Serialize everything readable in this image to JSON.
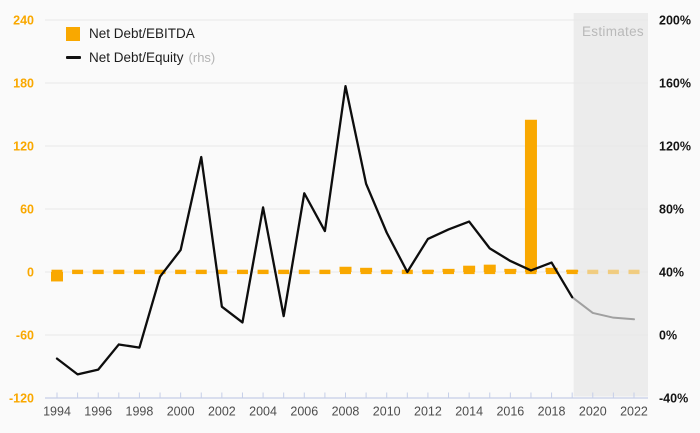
{
  "legend": {
    "ebitda_label": "Net Debt/EBITDA",
    "equity_label": "Net Debt/Equity",
    "equity_suffix": "(rhs)"
  },
  "estimates_label": "Estimates",
  "colors": {
    "accent": "#f9a800",
    "accent_faded_opacity": 0.45,
    "line": "#0d0d0d",
    "line_estimate": "#a0a0a0",
    "grid": "#e8e8e8",
    "axis": "#c5cee8",
    "x_label": "#4d4d4d",
    "left_label": "#f9a800",
    "right_label": "#141414",
    "estimates_bg": "#ececec",
    "background": "#fafafa"
  },
  "chart_data": {
    "type": "bar+line combo, dual axis",
    "x": [
      1994,
      1995,
      1996,
      1997,
      1998,
      1999,
      2000,
      2001,
      2002,
      2003,
      2004,
      2005,
      2006,
      2007,
      2008,
      2009,
      2010,
      2011,
      2012,
      2013,
      2014,
      2015,
      2016,
      2017,
      2018,
      2019,
      2020,
      2021,
      2022
    ],
    "x_tick_labels": [
      "1994",
      "1996",
      "1998",
      "2000",
      "2002",
      "2004",
      "2006",
      "2008",
      "2010",
      "2012",
      "2014",
      "2016",
      "2018",
      "2020",
      "2022"
    ],
    "series": [
      {
        "name": "Net Debt/EBITDA",
        "type": "bar",
        "axis": "left",
        "values": [
          -9,
          0,
          0,
          0,
          0,
          0,
          0,
          0,
          0,
          0,
          0,
          0,
          0,
          0,
          5,
          4,
          2,
          0,
          2,
          3,
          6,
          7,
          3,
          145,
          4,
          2,
          0,
          0,
          0
        ]
      },
      {
        "name": "Net Debt/Equity",
        "type": "line",
        "axis": "right",
        "unit": "%",
        "values": [
          -15,
          -25,
          -22,
          -6,
          -8,
          37,
          54,
          113,
          18,
          8,
          81,
          12,
          90,
          66,
          158,
          96,
          65,
          40,
          61,
          67,
          72,
          55,
          47,
          41,
          46,
          24,
          14,
          11,
          10
        ]
      }
    ],
    "left_axis": {
      "ticks": [
        240,
        180,
        120,
        60,
        0,
        -60,
        -120
      ],
      "min": -120,
      "max": 240
    },
    "right_axis": {
      "ticks": [
        "200%",
        "160%",
        "120%",
        "80%",
        "40%",
        "0%",
        "-40%"
      ],
      "tick_values": [
        200,
        160,
        120,
        80,
        40,
        0,
        -40
      ],
      "min": -40,
      "max": 200
    },
    "estimates_region": {
      "start_year": 2019,
      "end_year": 2022
    },
    "zero_line": {
      "style": "dashed",
      "value": 0,
      "axis": "left",
      "dash_aligned_to_years": true
    },
    "grid": "horizontal only",
    "legend_position": "top-left"
  }
}
